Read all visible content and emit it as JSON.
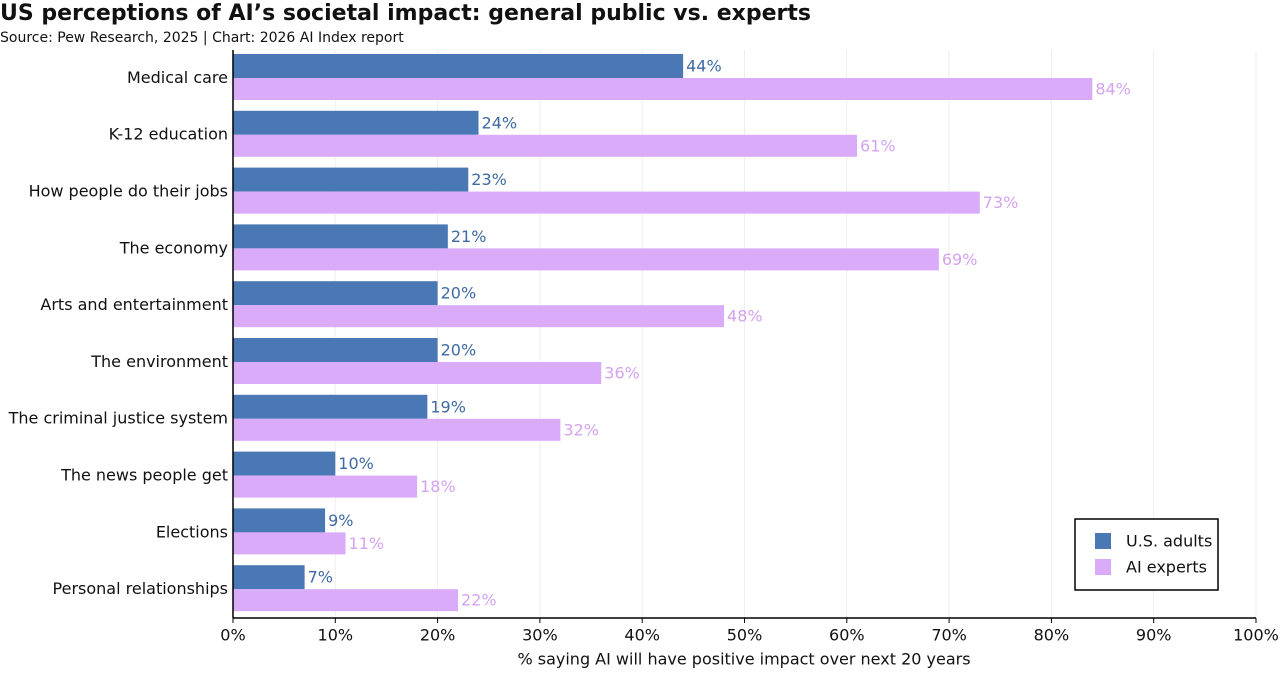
{
  "chart_data": {
    "type": "hbar",
    "title": "US perceptions of AI’s societal impact: general public vs. experts",
    "subtitle": "Source: Pew Research, 2025 | Chart: 2026 AI Index report",
    "x_label": "% saying AI will have positive impact over next 20 years",
    "categories": [
      "Medical care",
      "K-12 education",
      "How people do their jobs",
      "The economy",
      "Arts and entertainment",
      "The environment",
      "The criminal justice system",
      "The news people get",
      "Elections",
      "Personal relationships"
    ],
    "series": [
      {
        "name": "U.S. adults",
        "color": "#4a78b4",
        "label_color": "#3f6aa3",
        "values": [
          44,
          24,
          23,
          21,
          20,
          20,
          19,
          10,
          9,
          7
        ],
        "value_labels": [
          "44%",
          "24%",
          "23%",
          "21%",
          "20%",
          "20%",
          "19%",
          "10%",
          "9%",
          "7%"
        ]
      },
      {
        "name": "AI experts",
        "color": "#d9abf9",
        "label_color": "#d4a3f0",
        "values": [
          84,
          61,
          73,
          69,
          48,
          36,
          32,
          18,
          11,
          22
        ],
        "value_labels": [
          "84%",
          "61%",
          "73%",
          "69%",
          "48%",
          "36%",
          "32%",
          "18%",
          "11%",
          "22%"
        ]
      }
    ],
    "xlim": [
      0,
      100
    ],
    "xticks": [
      {
        "value": 0,
        "label": "0%"
      },
      {
        "value": 10,
        "label": "10%"
      },
      {
        "value": 20,
        "label": "20%"
      },
      {
        "value": 30,
        "label": "30%"
      },
      {
        "value": 40,
        "label": "40%"
      },
      {
        "value": 50,
        "label": "50%"
      },
      {
        "value": 60,
        "label": "60%"
      },
      {
        "value": 70,
        "label": "70%"
      },
      {
        "value": 80,
        "label": "80%"
      },
      {
        "value": 90,
        "label": "90%"
      },
      {
        "value": 100,
        "label": "100%"
      }
    ],
    "grid": true,
    "legend": "lower right"
  }
}
